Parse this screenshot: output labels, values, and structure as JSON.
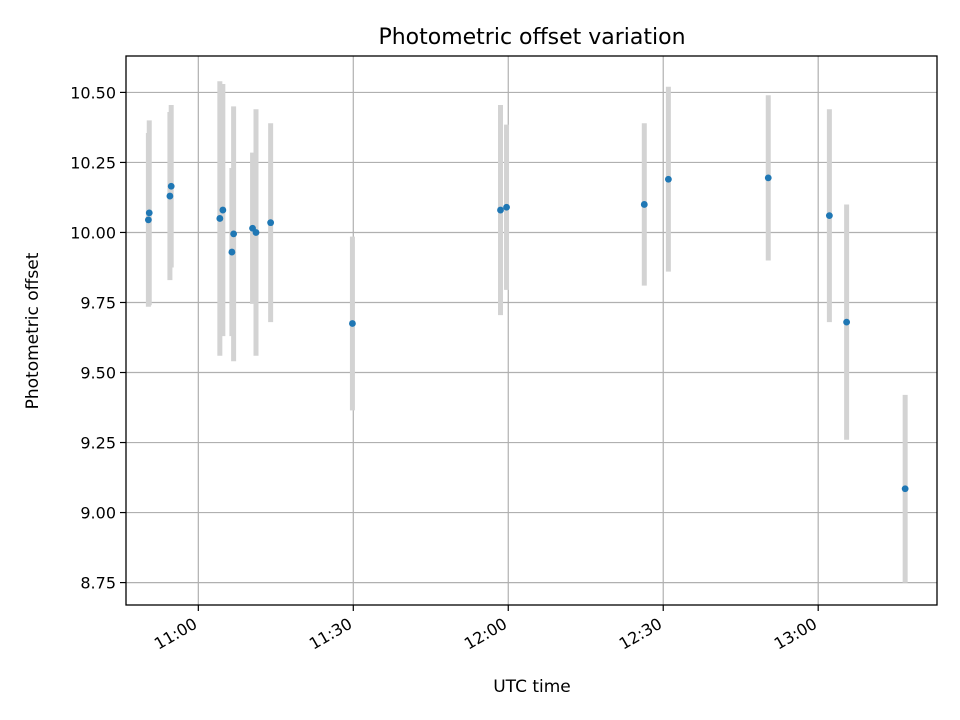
{
  "chart_data": {
    "type": "scatter",
    "title": "Photometric offset variation",
    "xlabel": "UTC time",
    "ylabel": "Photometric offset",
    "x_tick_labels": [
      "11:00",
      "11:30",
      "12:00",
      "12:30",
      "13:00"
    ],
    "y_tick_labels": [
      "8.75",
      "9.00",
      "9.25",
      "9.50",
      "9.75",
      "10.00",
      "10.25",
      "10.50"
    ],
    "xlim": [
      "10:46",
      "13:23"
    ],
    "ylim": [
      8.67,
      10.63
    ],
    "grid": true,
    "colors": {
      "points": "#1f77b4",
      "error_bars": "#d3d3d3",
      "grid": "#b0b0b0"
    },
    "series": [
      {
        "points": [
          {
            "x": "10:50:30",
            "y": 10.07,
            "yerr": 0.33
          },
          {
            "x": "10:50:20",
            "y": 10.045,
            "yerr": 0.31
          },
          {
            "x": "10:54:30",
            "y": 10.13,
            "yerr": 0.3
          },
          {
            "x": "10:54:45",
            "y": 10.165,
            "yerr": 0.29
          },
          {
            "x": "11:04:10",
            "y": 10.05,
            "yerr": 0.49
          },
          {
            "x": "11:06:30",
            "y": 9.93,
            "yerr": 0.3
          },
          {
            "x": "11:04:45",
            "y": 10.08,
            "yerr": 0.45
          },
          {
            "x": "11:06:50",
            "y": 9.995,
            "yerr": 0.455
          },
          {
            "x": "11:10:30",
            "y": 10.015,
            "yerr": 0.27
          },
          {
            "x": "11:11:10",
            "y": 10.0,
            "yerr": 0.44
          },
          {
            "x": "11:14:00",
            "y": 10.035,
            "yerr": 0.355
          },
          {
            "x": "11:29:50",
            "y": 9.675,
            "yerr": 0.31
          },
          {
            "x": "11:58:30",
            "y": 10.08,
            "yerr": 0.375
          },
          {
            "x": "11:59:40",
            "y": 10.09,
            "yerr": 0.295
          },
          {
            "x": "12:26:20",
            "y": 10.1,
            "yerr": 0.29
          },
          {
            "x": "12:31:00",
            "y": 10.19,
            "yerr": 0.33
          },
          {
            "x": "12:50:20",
            "y": 10.195,
            "yerr": 0.295
          },
          {
            "x": "13:02:10",
            "y": 10.06,
            "yerr": 0.38
          },
          {
            "x": "13:05:30",
            "y": 9.68,
            "yerr": 0.42
          },
          {
            "x": "13:16:50",
            "y": 9.085,
            "yerr": 0.335
          }
        ]
      }
    ]
  }
}
